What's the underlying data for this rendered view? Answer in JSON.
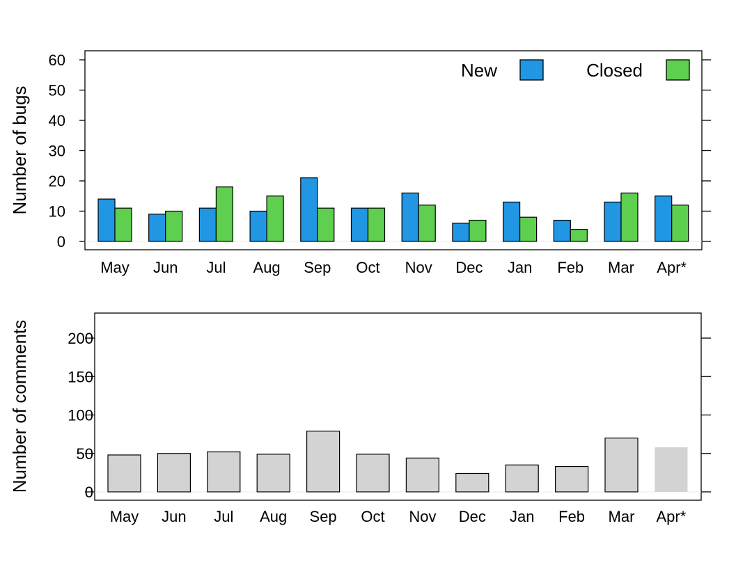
{
  "chart_data": [
    {
      "type": "bar",
      "ylabel": "Number of bugs",
      "xlabel": "",
      "categories": [
        "May",
        "Jun",
        "Jul",
        "Aug",
        "Sep",
        "Oct",
        "Nov",
        "Dec",
        "Jan",
        "Feb",
        "Mar",
        "Apr*"
      ],
      "series": [
        {
          "name": "New",
          "color": "#2196e3",
          "values": [
            14,
            9,
            11,
            10,
            21,
            11,
            16,
            6,
            13,
            7,
            13,
            15
          ]
        },
        {
          "name": "Closed",
          "color": "#5fcf4f",
          "values": [
            11,
            10,
            18,
            15,
            11,
            11,
            12,
            7,
            8,
            4,
            16,
            12
          ]
        }
      ],
      "ylim": [
        0,
        60
      ],
      "yticks": [
        0,
        10,
        20,
        30,
        40,
        50,
        60
      ],
      "legend": "top-right",
      "grid": false
    },
    {
      "type": "bar",
      "ylabel": "Number of comments",
      "xlabel": "",
      "categories": [
        "May",
        "Jun",
        "Jul",
        "Aug",
        "Sep",
        "Oct",
        "Nov",
        "Dec",
        "Jan",
        "Feb",
        "Mar",
        "Apr*"
      ],
      "values": [
        48,
        50,
        52,
        49,
        79,
        49,
        44,
        24,
        35,
        33,
        70,
        58
      ],
      "bar_color": "#d3d3d3",
      "partial_last_bar": true,
      "ylim": [
        0,
        200
      ],
      "yticks": [
        0,
        50,
        100,
        150,
        200
      ],
      "grid": false
    }
  ]
}
